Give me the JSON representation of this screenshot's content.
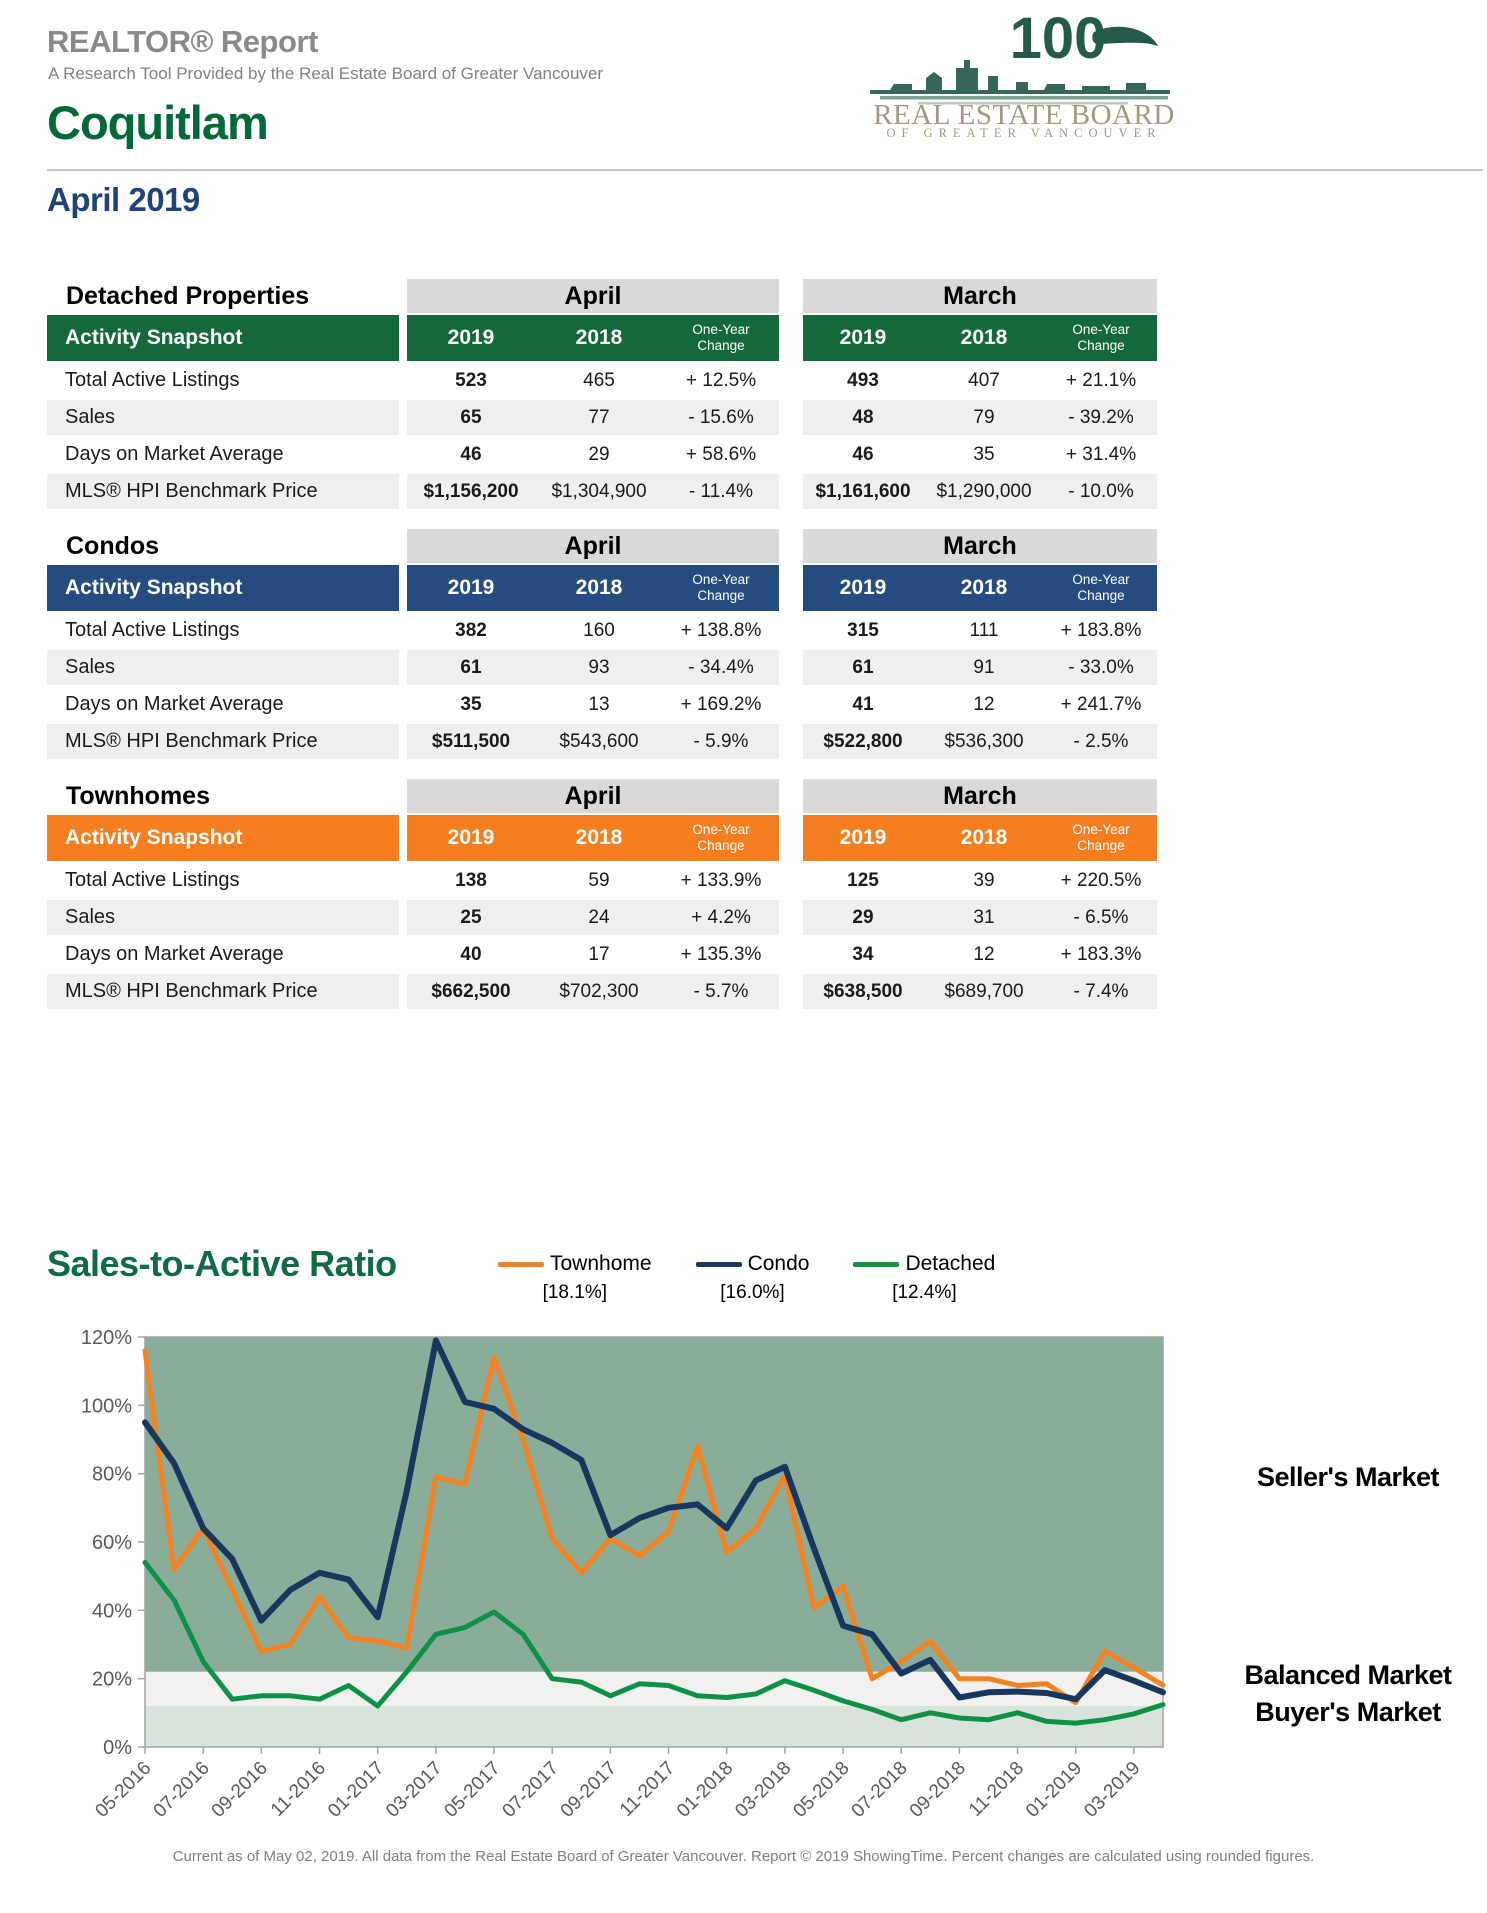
{
  "header": {
    "report_title": "REALTOR® Report",
    "report_subtitle": "A Research Tool Provided by the Real Estate Board of Greater Vancouver",
    "area": "Coquitlam",
    "period": "April 2019",
    "logo": {
      "anniversary": "100",
      "line1": "REAL ESTATE BOARD",
      "line2": "OF GREATER VANCOUVER",
      "accent_green": "#24594b",
      "accent_taupe": "#a6977e"
    }
  },
  "table_common": {
    "col_group_1": "April",
    "col_group_2": "March",
    "snapshot_label": "Activity Snapshot",
    "year_1": "2019",
    "year_2": "2018",
    "change_label": "One-Year Change"
  },
  "tables": [
    {
      "id": "detached",
      "name": "Detached Properties",
      "header_color": "#15683b",
      "rows": [
        [
          "Total Active Listings",
          "523",
          "465",
          "+ 12.5%",
          "493",
          "407",
          "+ 21.1%"
        ],
        [
          "Sales",
          "65",
          "77",
          "- 15.6%",
          "48",
          "79",
          "- 39.2%"
        ],
        [
          "Days on Market Average",
          "46",
          "29",
          "+ 58.6%",
          "46",
          "35",
          "+ 31.4%"
        ],
        [
          "MLS® HPI Benchmark Price",
          "$1,156,200",
          "$1,304,900",
          "- 11.4%",
          "$1,161,600",
          "$1,290,000",
          "- 10.0%"
        ]
      ]
    },
    {
      "id": "condos",
      "name": "Condos",
      "header_color": "#254b7f",
      "rows": [
        [
          "Total Active Listings",
          "382",
          "160",
          "+ 138.8%",
          "315",
          "111",
          "+ 183.8%"
        ],
        [
          "Sales",
          "61",
          "93",
          "- 34.4%",
          "61",
          "91",
          "- 33.0%"
        ],
        [
          "Days on Market Average",
          "35",
          "13",
          "+ 169.2%",
          "41",
          "12",
          "+ 241.7%"
        ],
        [
          "MLS® HPI Benchmark Price",
          "$511,500",
          "$543,600",
          "- 5.9%",
          "$522,800",
          "$536,300",
          "- 2.5%"
        ]
      ]
    },
    {
      "id": "townhomes",
      "name": "Townhomes",
      "header_color": "#f57e20",
      "rows": [
        [
          "Total Active Listings",
          "138",
          "59",
          "+ 133.9%",
          "125",
          "39",
          "+ 220.5%"
        ],
        [
          "Sales",
          "25",
          "24",
          "+ 4.2%",
          "29",
          "31",
          "- 6.5%"
        ],
        [
          "Days on Market Average",
          "40",
          "17",
          "+ 135.3%",
          "34",
          "12",
          "+ 183.3%"
        ],
        [
          "MLS® HPI Benchmark Price",
          "$662,500",
          "$702,300",
          "- 5.7%",
          "$638,500",
          "$689,700",
          "- 7.4%"
        ]
      ]
    }
  ],
  "chart_data": {
    "type": "line",
    "title": "Sales-to-Active Ratio",
    "ylim": [
      0,
      120
    ],
    "y_tick_labels": [
      "0%",
      "20%",
      "40%",
      "60%",
      "80%",
      "100%",
      "120%"
    ],
    "grid": false,
    "legend_position": "top",
    "x": [
      "05-2016",
      "06-2016",
      "07-2016",
      "08-2016",
      "09-2016",
      "10-2016",
      "11-2016",
      "12-2016",
      "01-2017",
      "02-2017",
      "03-2017",
      "04-2017",
      "05-2017",
      "06-2017",
      "07-2017",
      "08-2017",
      "09-2017",
      "10-2017",
      "11-2017",
      "12-2017",
      "01-2018",
      "02-2018",
      "03-2018",
      "04-2018",
      "05-2018",
      "06-2018",
      "07-2018",
      "08-2018",
      "09-2018",
      "10-2018",
      "11-2018",
      "12-2018",
      "01-2019",
      "02-2019",
      "03-2019",
      "04-2019"
    ],
    "x_axis_labels": [
      "05-2016",
      "07-2016",
      "09-2016",
      "11-2016",
      "01-2017",
      "03-2017",
      "05-2017",
      "07-2017",
      "09-2017",
      "11-2017",
      "01-2018",
      "03-2018",
      "05-2018",
      "07-2018",
      "09-2018",
      "11-2018",
      "01-2019",
      "03-2019"
    ],
    "series": [
      {
        "name": "Townhome",
        "legend_value": "[18.1%]",
        "color": "#f58220",
        "values": [
          116,
          52,
          64,
          46,
          28,
          30,
          44,
          32,
          31,
          29,
          79,
          77,
          114,
          90,
          61,
          51,
          61,
          56,
          63,
          88,
          57,
          64,
          79.5,
          40.7,
          47,
          20,
          25,
          31,
          20,
          20,
          18,
          18.5,
          13,
          28,
          23.2,
          18.1
        ]
      },
      {
        "name": "Condo",
        "legend_value": "[16.0%]",
        "color": "#17375e",
        "values": [
          95,
          83,
          64,
          55,
          37,
          46,
          51,
          49,
          38,
          75,
          119,
          101,
          99,
          93,
          89,
          84,
          62,
          67,
          70,
          71,
          64,
          78,
          82,
          58.1,
          35.5,
          33,
          21.5,
          25.5,
          14.5,
          16,
          16.2,
          15.8,
          14,
          22.5,
          19.4,
          16
        ]
      },
      {
        "name": "Detached",
        "legend_value": "[12.4%]",
        "color": "#0e9147",
        "values": [
          54,
          43,
          25,
          14,
          15,
          15,
          14,
          18,
          12,
          22,
          33,
          35,
          39.5,
          33,
          20,
          19,
          15,
          18.5,
          18,
          15,
          14.5,
          15.5,
          19.4,
          16.6,
          13.5,
          11,
          8,
          10,
          8.5,
          8,
          10,
          7.5,
          7,
          8,
          9.7,
          12.4
        ]
      }
    ],
    "bands": [
      {
        "id": "sellers",
        "from": 22,
        "to": 120,
        "color": "#8aad9a"
      },
      {
        "id": "balanced",
        "from": 12,
        "to": 22,
        "color": "#f1f1ef"
      },
      {
        "id": "buyers",
        "from": 0,
        "to": 12,
        "color": "#d8e4da"
      }
    ],
    "market_labels": [
      {
        "id": "seller",
        "text": "Seller's Market"
      },
      {
        "id": "balanced",
        "text": "Balanced Market"
      },
      {
        "id": "buyer",
        "text": "Buyer's Market"
      }
    ]
  },
  "footer": {
    "text": "Current as of May 02, 2019. All data from the Real Estate Board of Greater Vancouver. Report © 2019 ShowingTime. Percent changes are calculated using rounded figures."
  }
}
